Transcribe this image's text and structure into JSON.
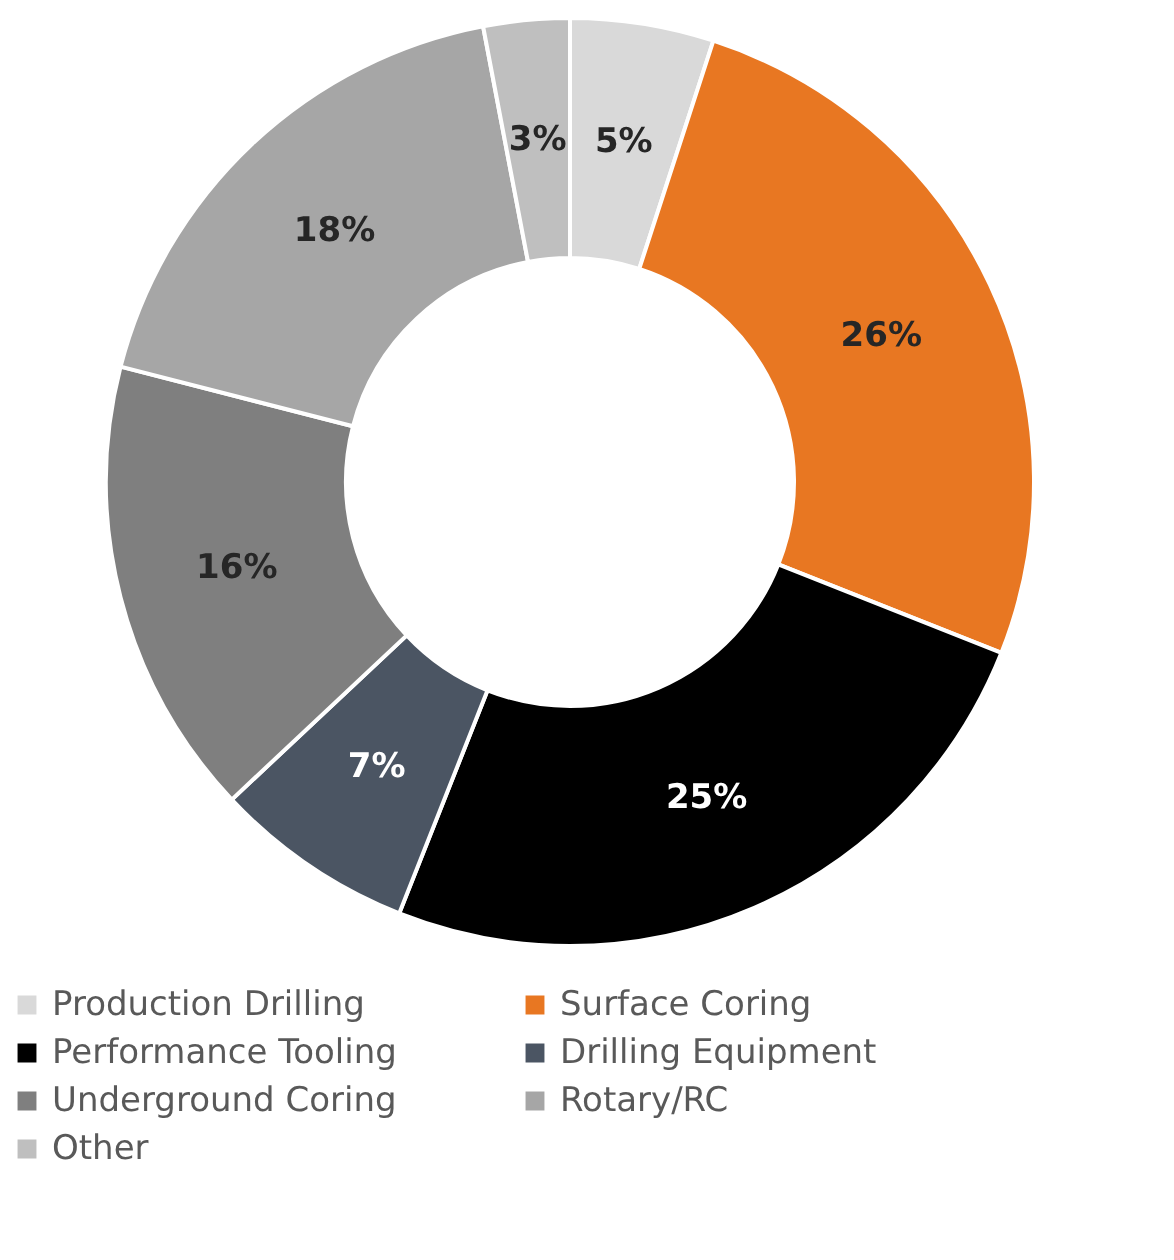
{
  "chart_data": {
    "type": "donut",
    "categories": [
      "Production Drilling",
      "Surface Coring",
      "Performance Tooling",
      "Drilling Equipment",
      "Underground Coring",
      "Rotary/RC",
      "Other"
    ],
    "values": [
      5,
      26,
      25,
      7,
      16,
      18,
      3
    ],
    "value_labels": [
      "5%",
      "26%",
      "25%",
      "7%",
      "16%",
      "18%",
      "3%"
    ],
    "colors": [
      "#d9d9d9",
      "#e87722",
      "#000000",
      "#4b5563",
      "#7f7f7f",
      "#a6a6a6",
      "#bfbfbf"
    ],
    "legend": "bottom"
  }
}
